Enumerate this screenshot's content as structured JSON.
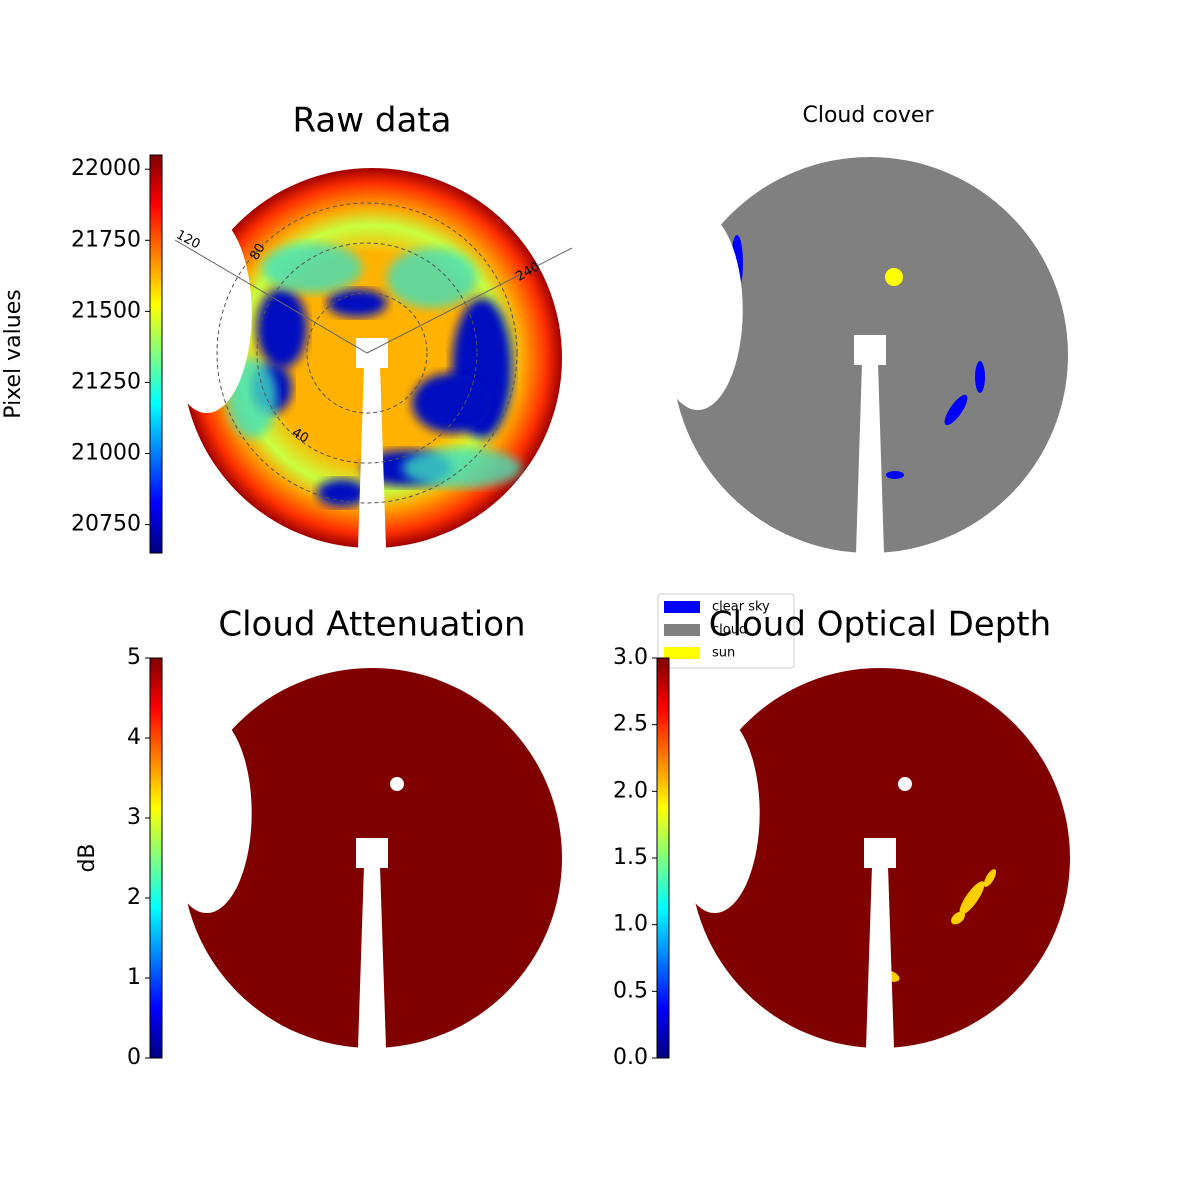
{
  "chart_data": [
    {
      "type": "image",
      "title": "Raw data",
      "colormap": "jet",
      "colorbar": {
        "label": "Pixel values",
        "lim": [
          20650,
          22050
        ],
        "ticks": [
          20750,
          21000,
          21250,
          21500,
          21750,
          22000
        ]
      },
      "polar_labels": [
        "120",
        "80",
        "240",
        "40"
      ]
    },
    {
      "type": "image",
      "title": "Cloud cover",
      "legend": {
        "series": [
          {
            "name": "clear sky",
            "color": "#0000ff"
          },
          {
            "name": "cloud",
            "color": "#808080"
          },
          {
            "name": "sun",
            "color": "#ffff00"
          }
        ]
      }
    },
    {
      "type": "image",
      "title": "Cloud Attenuation",
      "colormap": "jet",
      "colorbar": {
        "label": "dB",
        "lim": [
          0,
          5
        ],
        "ticks": [
          0,
          1,
          2,
          3,
          4,
          5
        ]
      }
    },
    {
      "type": "image",
      "title": "Cloud Optical Depth",
      "colormap": "jet",
      "colorbar": {
        "lim": [
          0,
          3
        ],
        "ticks": [
          {
            "value": 0,
            "label": "0.0"
          },
          0.5,
          {
            "value": 1,
            "label": "1.0"
          },
          1.5,
          {
            "value": 2,
            "label": "2.0"
          },
          2.5,
          {
            "value": 3,
            "label": "3.0"
          }
        ]
      }
    }
  ]
}
